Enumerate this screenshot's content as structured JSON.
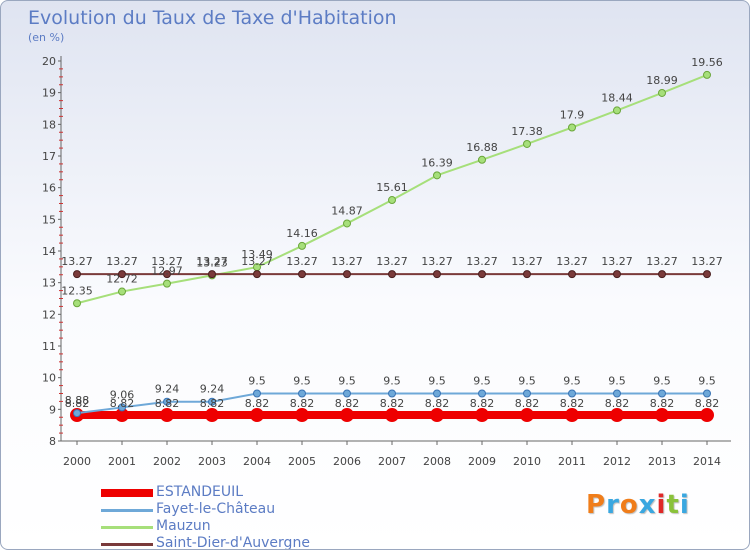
{
  "title": "Evolution du Taux de Taxe d'Habitation",
  "subtitle": "(en %)",
  "chart_data": {
    "type": "line",
    "title": "Evolution du Taux de Taxe d'Habitation",
    "subtitle": "(en %)",
    "xlabel": "",
    "ylabel": "",
    "categories": [
      "2000",
      "2001",
      "2002",
      "2003",
      "2004",
      "2005",
      "2006",
      "2007",
      "2008",
      "2009",
      "2010",
      "2011",
      "2012",
      "2013",
      "2014"
    ],
    "ylim": [
      8,
      20
    ],
    "yticks": [
      "8",
      "9",
      "10",
      "11",
      "12",
      "13",
      "14",
      "15",
      "16",
      "17",
      "18",
      "19",
      "20"
    ],
    "grid": false,
    "legend_position": "bottom-left",
    "series": [
      {
        "name": "ESTANDEUIL",
        "color": "#ee0000",
        "thick": true,
        "values": [
          8.82,
          8.82,
          8.82,
          8.82,
          8.82,
          8.82,
          8.82,
          8.82,
          8.82,
          8.82,
          8.82,
          8.82,
          8.82,
          8.82,
          8.82
        ],
        "labels": [
          "8.82",
          "8.82",
          "8.82",
          "8.82",
          "8.82",
          "8.82",
          "8.82",
          "8.82",
          "8.82",
          "8.82",
          "8.82",
          "8.82",
          "8.82",
          "8.82",
          "8.82"
        ]
      },
      {
        "name": "Fayet-le-Château",
        "color": "#6ea8d8",
        "values": [
          8.88,
          9.06,
          9.24,
          9.24,
          9.5,
          9.5,
          9.5,
          9.5,
          9.5,
          9.5,
          9.5,
          9.5,
          9.5,
          9.5,
          9.5
        ],
        "labels": [
          "8.88",
          "9.06",
          "9.24",
          "9.24",
          "9.5",
          "9.5",
          "9.5",
          "9.5",
          "9.5",
          "9.5",
          "9.5",
          "9.5",
          "9.5",
          "9.5",
          "9.5"
        ]
      },
      {
        "name": "Mauzun",
        "color": "#a6df7a",
        "values": [
          12.35,
          12.72,
          12.97,
          13.23,
          13.49,
          14.16,
          14.87,
          15.61,
          16.39,
          16.88,
          17.38,
          17.9,
          18.44,
          18.99,
          19.56
        ],
        "labels": [
          "12.35",
          "12.72",
          "12.97",
          "13.23",
          "13.49",
          "14.16",
          "14.87",
          "15.61",
          "16.39",
          "16.88",
          "17.38",
          "17.9",
          "18.44",
          "18.99",
          "19.56"
        ]
      },
      {
        "name": "Saint-Dier-d'Auvergne",
        "color": "#7a3a3a",
        "values": [
          13.27,
          13.27,
          13.27,
          13.27,
          13.27,
          13.27,
          13.27,
          13.27,
          13.27,
          13.27,
          13.27,
          13.27,
          13.27,
          13.27,
          13.27
        ],
        "labels": [
          "13.27",
          "13.27",
          "13.27",
          "13.27",
          "13.27",
          "13.27",
          "13.27",
          "13.27",
          "13.27",
          "13.27",
          "13.27",
          "13.27",
          "13.27",
          "13.27",
          "13.27"
        ]
      }
    ]
  },
  "legend": {
    "items": [
      {
        "label": "ESTANDEUIL",
        "color": "#ee0000"
      },
      {
        "label": "Fayet-le-Château",
        "color": "#6ea8d8"
      },
      {
        "label": "Mauzun",
        "color": "#a6df7a"
      },
      {
        "label": "Saint-Dier-d'Auvergne",
        "color": "#7a3a3a"
      }
    ]
  },
  "logo": {
    "text": "Proxiti",
    "colors": [
      "#f07d1a",
      "#3aa7e0",
      "#f07d1a",
      "#3aa7e0",
      "#e02828",
      "#8ac23a",
      "#3aa7e0"
    ]
  }
}
